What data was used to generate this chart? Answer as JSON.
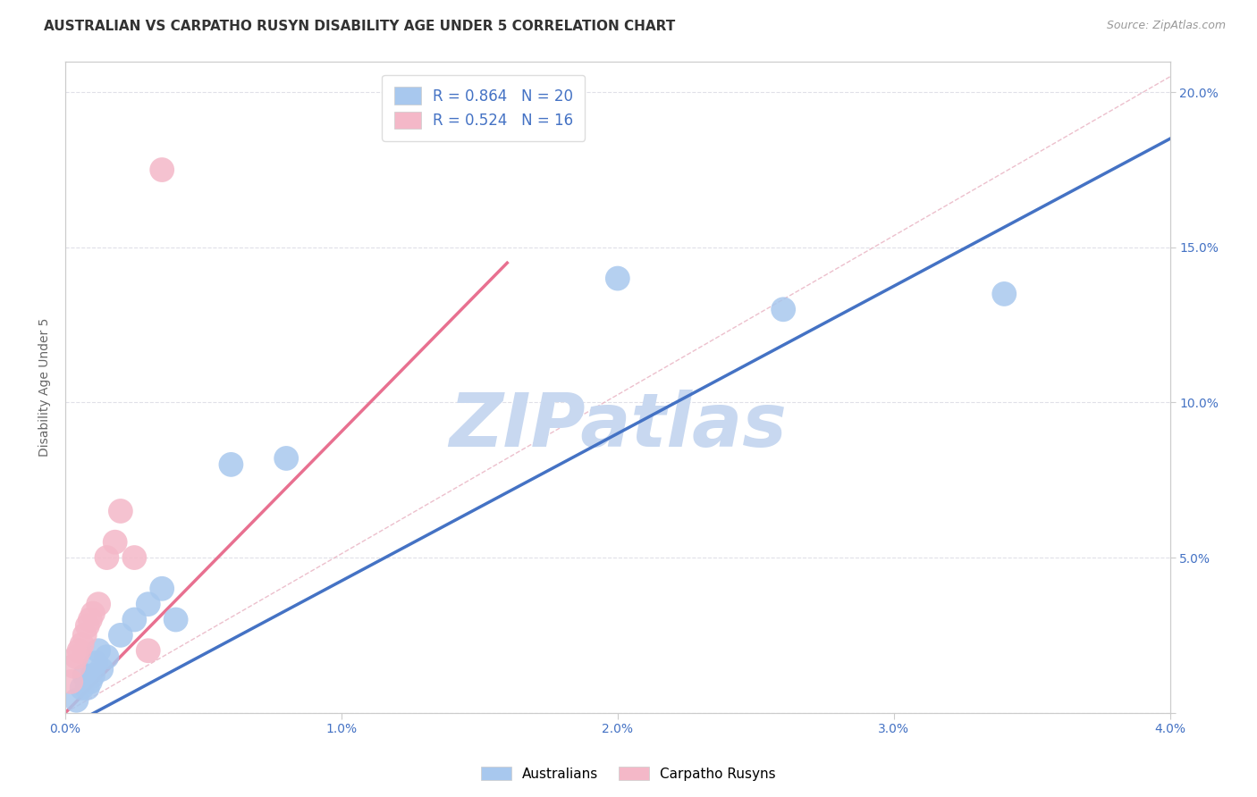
{
  "title": "AUSTRALIAN VS CARPATHO RUSYN DISABILITY AGE UNDER 5 CORRELATION CHART",
  "source": "Source: ZipAtlas.com",
  "ylabel": "Disability Age Under 5",
  "xlim": [
    0.0,
    0.04
  ],
  "ylim": [
    0.0,
    0.21
  ],
  "xticks": [
    0.0,
    0.01,
    0.02,
    0.03,
    0.04
  ],
  "xtick_labels": [
    "0.0%",
    "1.0%",
    "2.0%",
    "3.0%",
    "4.0%"
  ],
  "yticks": [
    0.0,
    0.05,
    0.1,
    0.15,
    0.2
  ],
  "ytick_labels": [
    "",
    "5.0%",
    "10.0%",
    "15.0%",
    "20.0%"
  ],
  "blue_R": 0.864,
  "blue_N": 20,
  "pink_R": 0.524,
  "pink_N": 16,
  "blue_color": "#A8C8EE",
  "pink_color": "#F4B8C8",
  "blue_line_color": "#4472C4",
  "pink_line_color": "#E87090",
  "legend_label_blue": "Australians",
  "legend_label_pink": "Carpatho Rusyns",
  "watermark": "ZIPatlas",
  "watermark_color": "#C8D8F0",
  "blue_scatter_x": [
    0.0004,
    0.0006,
    0.0007,
    0.0008,
    0.0009,
    0.001,
    0.0011,
    0.0012,
    0.0013,
    0.0015,
    0.002,
    0.0025,
    0.003,
    0.0035,
    0.004,
    0.006,
    0.008,
    0.02,
    0.026,
    0.034
  ],
  "blue_scatter_y": [
    0.004,
    0.008,
    0.012,
    0.008,
    0.01,
    0.012,
    0.016,
    0.02,
    0.014,
    0.018,
    0.025,
    0.03,
    0.035,
    0.04,
    0.03,
    0.08,
    0.082,
    0.14,
    0.13,
    0.135
  ],
  "pink_scatter_x": [
    0.0002,
    0.0003,
    0.0004,
    0.0005,
    0.0006,
    0.0007,
    0.0008,
    0.0009,
    0.001,
    0.0012,
    0.0015,
    0.0018,
    0.002,
    0.0025,
    0.003,
    0.0035
  ],
  "pink_scatter_y": [
    0.01,
    0.015,
    0.018,
    0.02,
    0.022,
    0.025,
    0.028,
    0.03,
    0.032,
    0.035,
    0.05,
    0.055,
    0.065,
    0.05,
    0.02,
    0.175
  ],
  "blue_line_x": [
    0.0,
    0.04
  ],
  "blue_line_y": [
    -0.005,
    0.185
  ],
  "pink_line_x": [
    0.0,
    0.016
  ],
  "pink_line_y": [
    0.0,
    0.145
  ],
  "diag_line_x": [
    0.0,
    0.04
  ],
  "diag_line_y": [
    0.0,
    0.205
  ],
  "background_color": "#FFFFFF",
  "grid_color": "#E0E0E8",
  "title_fontsize": 11,
  "axis_label_fontsize": 10,
  "tick_fontsize": 10,
  "legend_fontsize": 12
}
